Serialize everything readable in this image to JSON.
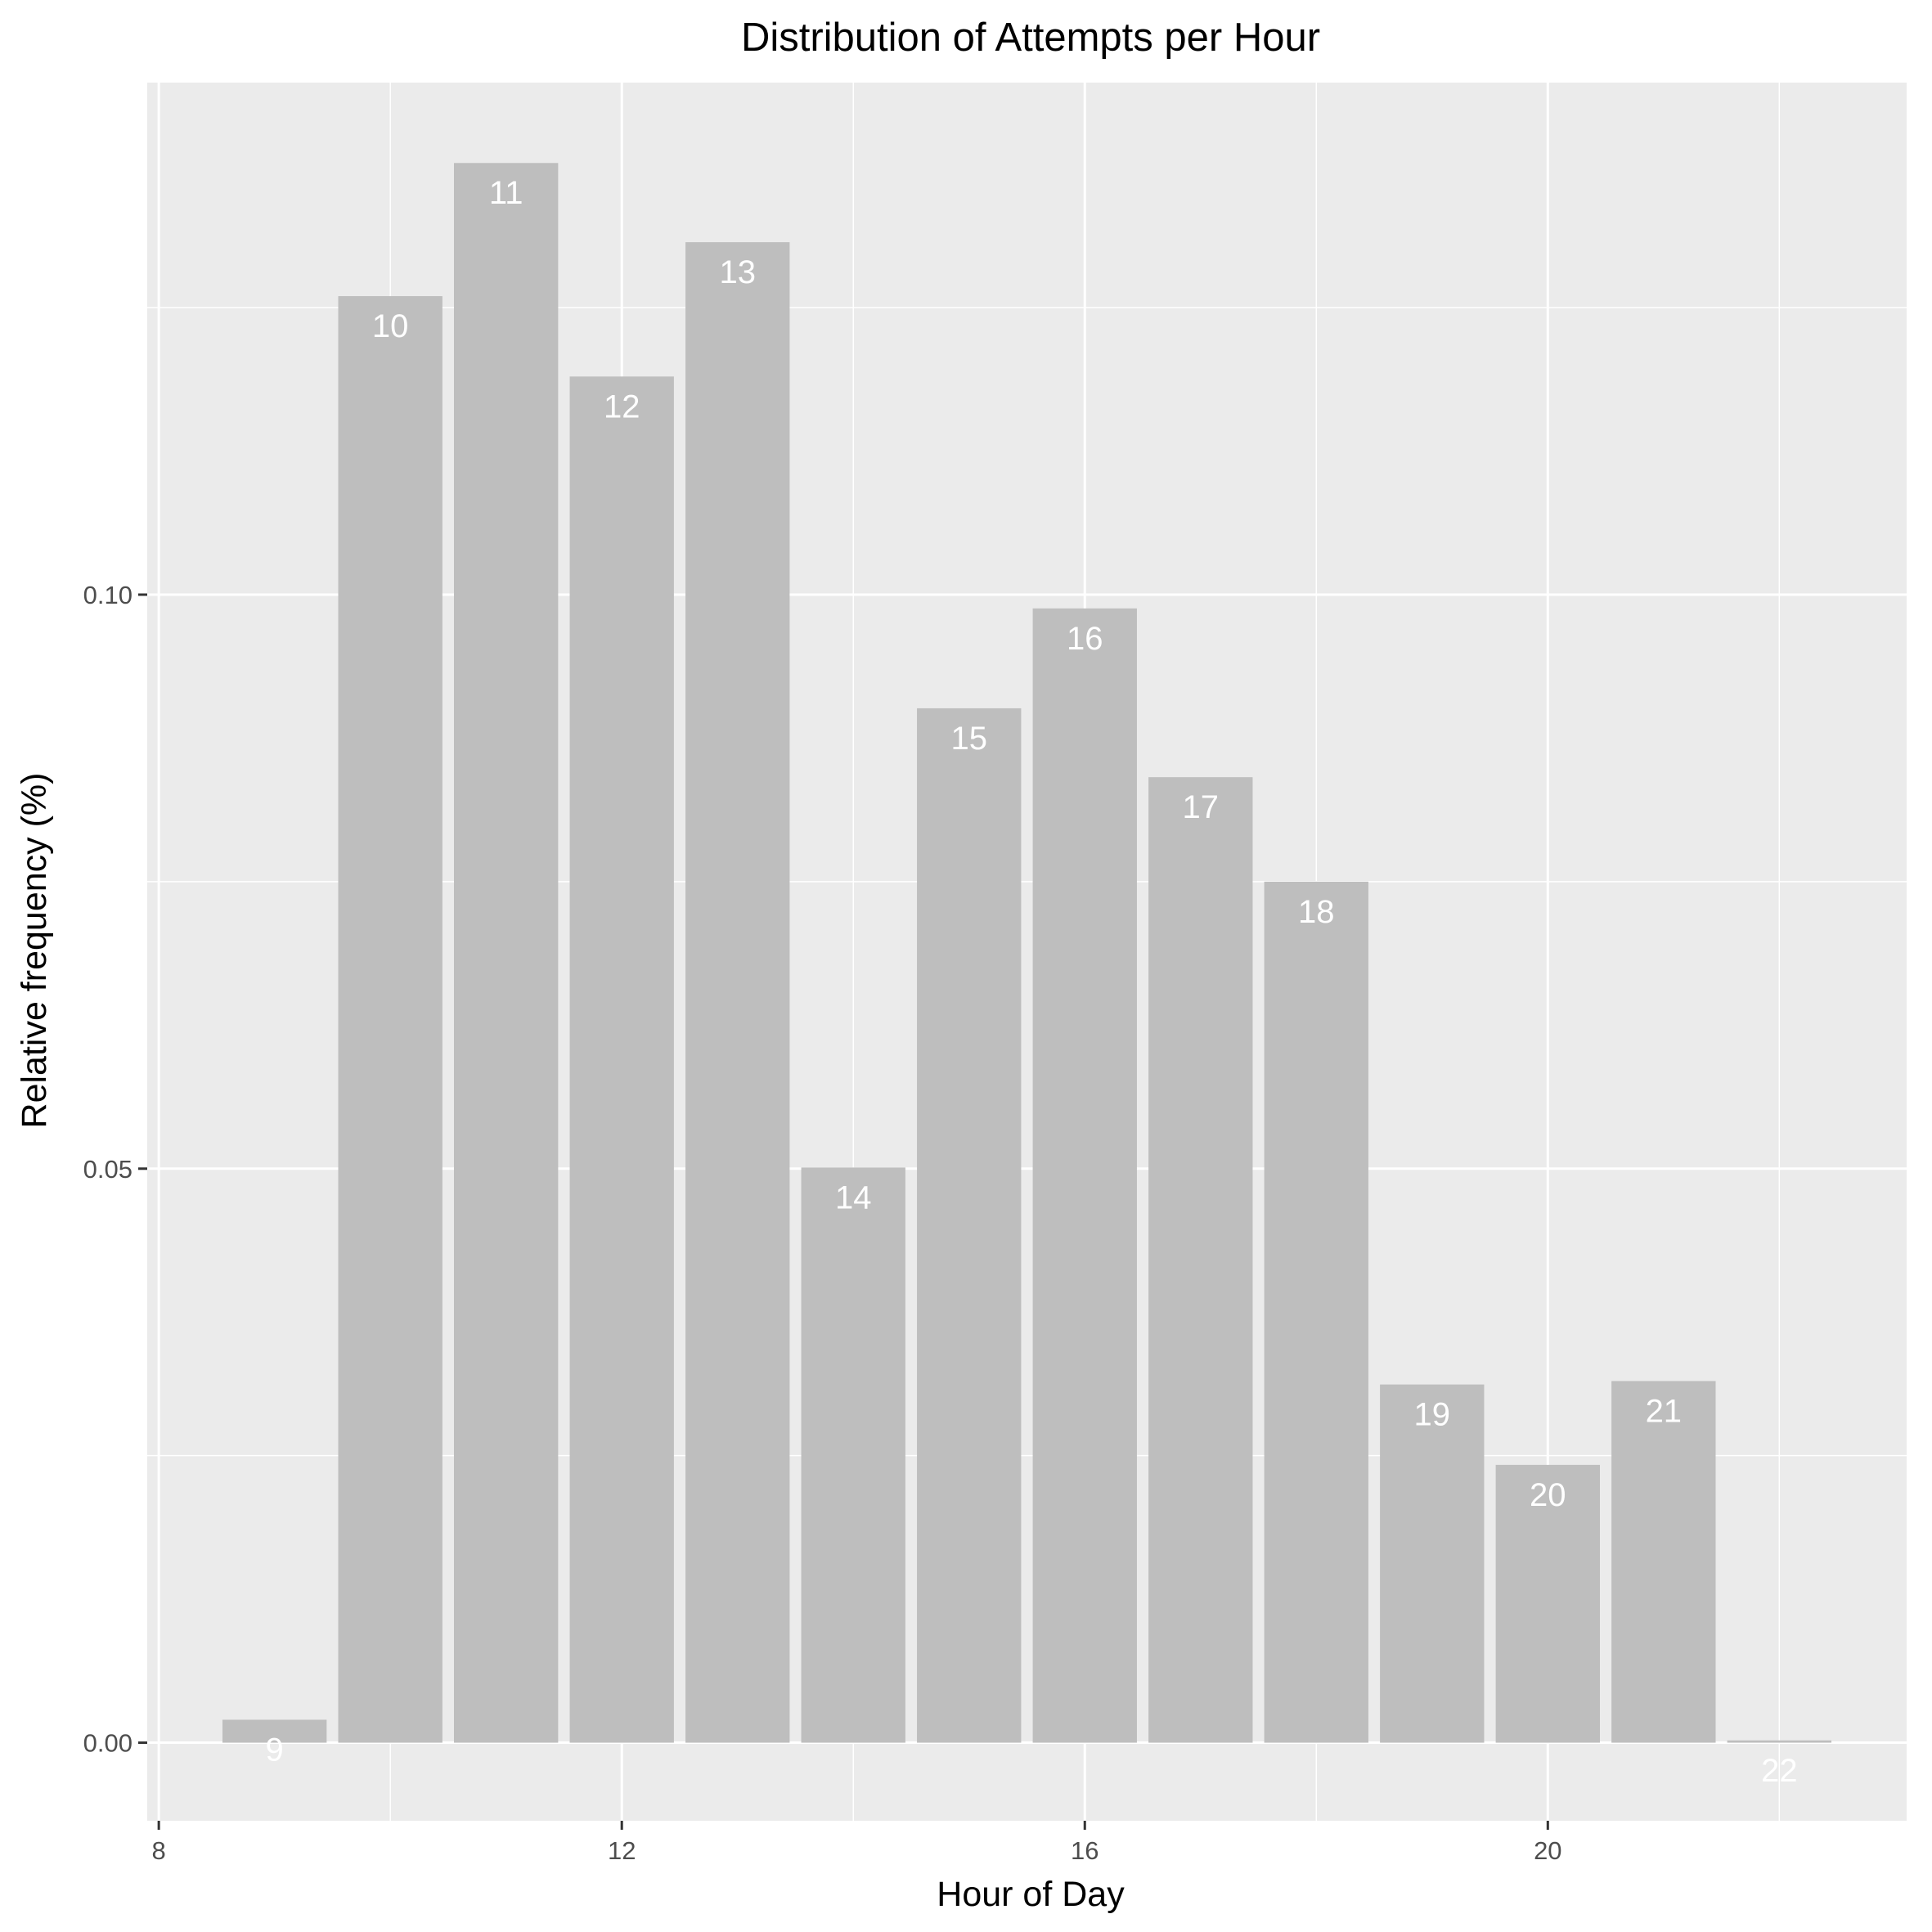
{
  "chart_data": {
    "type": "bar",
    "title": "Distribution of Attempts per Hour",
    "xlabel": "Hour of Day",
    "ylabel": "Relative frequency (%)",
    "x": [
      9,
      10,
      11,
      12,
      13,
      14,
      15,
      16,
      17,
      18,
      19,
      20,
      21,
      22
    ],
    "values": [
      0.002,
      0.126,
      0.1376,
      0.119,
      0.1307,
      0.0501,
      0.0901,
      0.0988,
      0.0841,
      0.075,
      0.0312,
      0.0242,
      0.0315,
      0.0002
    ],
    "data_labels": [
      "9",
      "10",
      "11",
      "12",
      "13",
      "14",
      "15",
      "16",
      "17",
      "18",
      "19",
      "20",
      "21",
      "22"
    ],
    "xlim": [
      7.9,
      23.1
    ],
    "ylim": [
      -0.0068,
      0.1446
    ],
    "x_ticks": [
      8,
      12,
      16,
      20
    ],
    "x_tick_labels": [
      "8",
      "12",
      "16",
      "20"
    ],
    "y_ticks": [
      0.0,
      0.05,
      0.1
    ],
    "y_tick_labels": [
      "0.00",
      "0.05",
      "0.10"
    ],
    "grid": true,
    "legend": "none",
    "colors": {
      "panel_background": "#ebebeb",
      "grid": "#ffffff",
      "bar_fill": "#bebebe",
      "data_label": "#ffffff",
      "tick_label": "#4d4d4d",
      "tick_mark": "#333333",
      "text": "#000000"
    }
  }
}
